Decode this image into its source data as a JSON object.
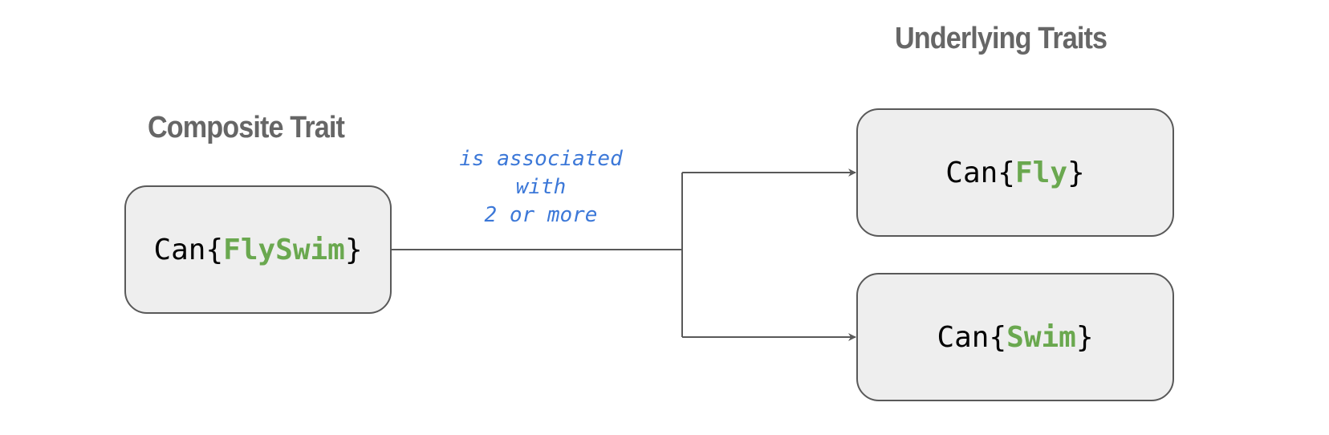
{
  "headings": {
    "composite": "Composite Trait",
    "underlying": "Underlying Traits"
  },
  "composite_box": {
    "prefix": "Can{",
    "name": "FlySwim",
    "suffix": "}"
  },
  "underlying_boxes": [
    {
      "prefix": "Can{",
      "name": "Fly",
      "suffix": "}"
    },
    {
      "prefix": "Can{",
      "name": "Swim",
      "suffix": "}"
    }
  ],
  "relation": {
    "lines": [
      "is associated",
      "with",
      "2 or more"
    ]
  },
  "colors": {
    "heading": "#666666",
    "trait_name": "#6aa84f",
    "relation_text": "#3c78d8",
    "box_fill": "#eeeeee",
    "box_border": "#595959",
    "connector": "#595959"
  }
}
